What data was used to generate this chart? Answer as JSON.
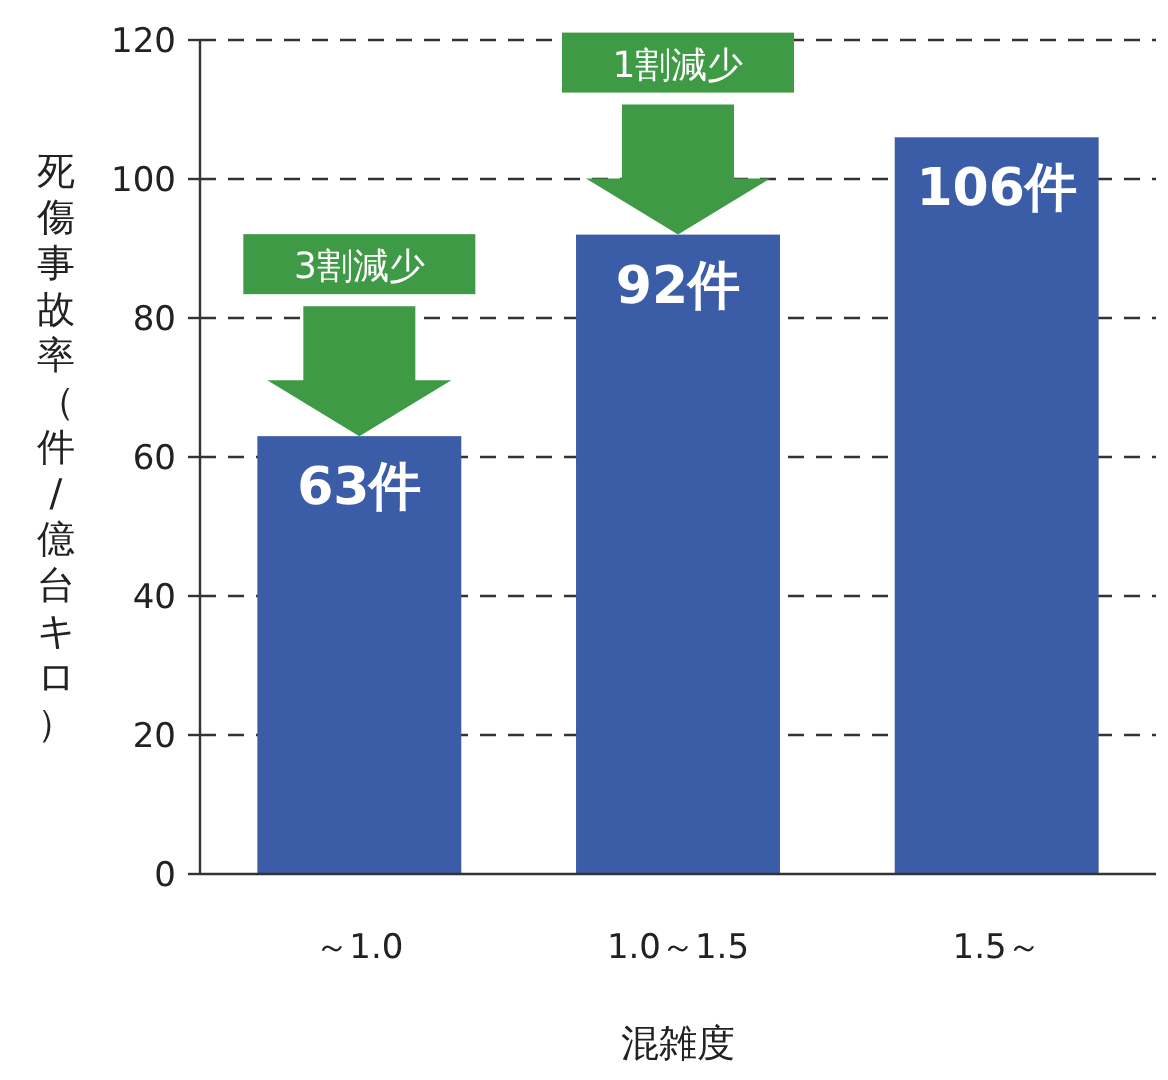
{
  "chart_data": {
    "type": "bar",
    "xlabel": "混雑度",
    "ylabel": "死傷事故率（件/億台キロ）",
    "categories": [
      "～1.0",
      "1.0～1.5",
      "1.5～"
    ],
    "values": [
      63,
      92,
      106
    ],
    "color": "#3b5ca6",
    "value_labels": [
      "63件",
      "92件",
      "106件"
    ],
    "ylim": [
      0,
      120
    ],
    "yticks": [
      0,
      20,
      40,
      60,
      80,
      100,
      120
    ],
    "grid": "y",
    "annotations": [
      "3割減少",
      "1割減少"
    ]
  }
}
